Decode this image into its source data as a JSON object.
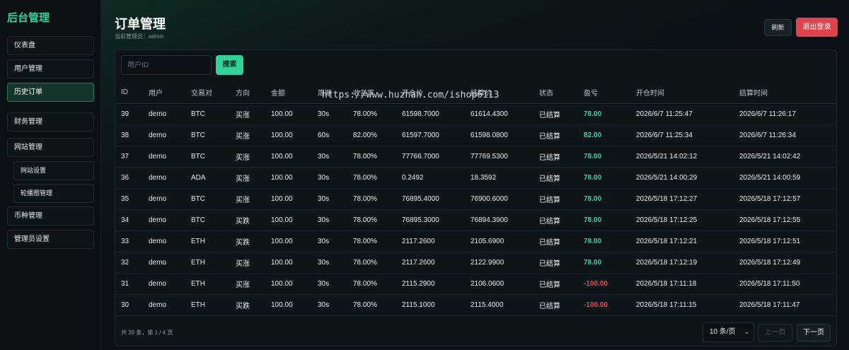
{
  "sidebar": {
    "brand": "后台管理",
    "items": [
      {
        "label": "仪表盘"
      },
      {
        "label": "用户管理"
      },
      {
        "label": "历史订单"
      },
      {
        "label": "财务管理"
      },
      {
        "label": "网站管理"
      },
      {
        "label": "网站设置"
      },
      {
        "label": "轮播图管理"
      },
      {
        "label": "币种管理"
      },
      {
        "label": "管理员设置"
      }
    ]
  },
  "header": {
    "title": "订单管理",
    "subtitle": "当前管理员：admin",
    "refresh_label": "刷新",
    "logout_label": "退出登录"
  },
  "search": {
    "placeholder": "用户ID",
    "button_label": "搜索"
  },
  "watermark": "https://www.huzhan.com/ishop6113",
  "table": {
    "columns": [
      "ID",
      "用户",
      "交易对",
      "方向",
      "金额",
      "周期",
      "收益率",
      "开仓价",
      "结算价",
      "状态",
      "盈亏",
      "开仓时间",
      "结算时间"
    ],
    "rows": [
      [
        "39",
        "demo",
        "BTC",
        "买涨",
        "100.00",
        "30s",
        "78.00%",
        "61598.7000",
        "61614.4300",
        "已结算",
        "78.00",
        "2026/6/7 11:25:47",
        "2026/6/7 11:26:17"
      ],
      [
        "38",
        "demo",
        "BTC",
        "买涨",
        "100.00",
        "60s",
        "82.00%",
        "61597.7000",
        "61598.0800",
        "已结算",
        "82.00",
        "2026/6/7 11:25:34",
        "2026/6/7 11:26:34"
      ],
      [
        "37",
        "demo",
        "BTC",
        "买涨",
        "100.00",
        "30s",
        "78.00%",
        "77766.7000",
        "77769.5300",
        "已结算",
        "78.00",
        "2026/5/21 14:02:12",
        "2026/5/21 14:02:42"
      ],
      [
        "36",
        "demo",
        "ADA",
        "买涨",
        "100.00",
        "30s",
        "78.00%",
        "0.2492",
        "18.3592",
        "已结算",
        "78.00",
        "2026/5/21 14:00:29",
        "2026/5/21 14:00:59"
      ],
      [
        "35",
        "demo",
        "BTC",
        "买涨",
        "100.00",
        "30s",
        "78.00%",
        "76895.4000",
        "76900.6000",
        "已结算",
        "78.00",
        "2026/5/18 17:12:27",
        "2026/5/18 17:12:57"
      ],
      [
        "34",
        "demo",
        "BTC",
        "买跌",
        "100.00",
        "30s",
        "78.00%",
        "76895.3000",
        "76894.3900",
        "已结算",
        "78.00",
        "2026/5/18 17:12:25",
        "2026/5/18 17:12:55"
      ],
      [
        "33",
        "demo",
        "ETH",
        "买跌",
        "100.00",
        "30s",
        "78.00%",
        "2117.2600",
        "2105.6900",
        "已结算",
        "78.00",
        "2026/5/18 17:12:21",
        "2026/5/18 17:12:51"
      ],
      [
        "32",
        "demo",
        "ETH",
        "买涨",
        "100.00",
        "30s",
        "78.00%",
        "2117.2600",
        "2122.9900",
        "已结算",
        "78.00",
        "2026/5/18 17:12:19",
        "2026/5/18 17:12:49"
      ],
      [
        "31",
        "demo",
        "ETH",
        "买涨",
        "100.00",
        "30s",
        "78.00%",
        "2115.2900",
        "2106.0600",
        "已结算",
        "-100.00",
        "2026/5/18 17:11:18",
        "2026/5/18 17:11:50"
      ],
      [
        "30",
        "demo",
        "ETH",
        "买跌",
        "100.00",
        "30s",
        "78.00%",
        "2115.1000",
        "2115.4000",
        "已结算",
        "-100.00",
        "2026/5/18 17:11:15",
        "2026/5/18 17:11:47"
      ]
    ]
  },
  "footer": {
    "info": "共 39 条，第 1 / 4 页",
    "page_size": "10 条/页",
    "prev_label": "上一页",
    "next_label": "下一页"
  },
  "colors": {
    "accent": "#2dd399",
    "profit": "#2dd399",
    "loss": "#f0454e",
    "danger_button": "#e0424c",
    "background": "#0b1116"
  }
}
